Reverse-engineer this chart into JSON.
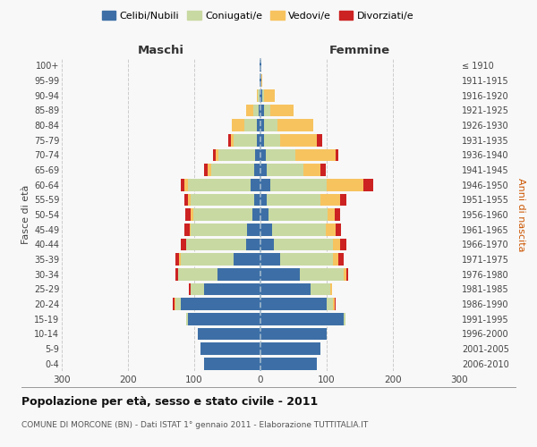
{
  "age_groups": [
    "0-4",
    "5-9",
    "10-14",
    "15-19",
    "20-24",
    "25-29",
    "30-34",
    "35-39",
    "40-44",
    "45-49",
    "50-54",
    "55-59",
    "60-64",
    "65-69",
    "70-74",
    "75-79",
    "80-84",
    "85-89",
    "90-94",
    "95-99",
    "100+"
  ],
  "birth_years": [
    "2006-2010",
    "2001-2005",
    "1996-2000",
    "1991-1995",
    "1986-1990",
    "1981-1985",
    "1976-1980",
    "1971-1975",
    "1966-1970",
    "1961-1965",
    "1956-1960",
    "1951-1955",
    "1946-1950",
    "1941-1945",
    "1936-1940",
    "1931-1935",
    "1926-1930",
    "1921-1925",
    "1916-1920",
    "1911-1915",
    "≤ 1910"
  ],
  "maschi_celibe": [
    85,
    90,
    95,
    110,
    120,
    85,
    65,
    40,
    22,
    20,
    12,
    10,
    15,
    10,
    8,
    5,
    5,
    3,
    2,
    1,
    1
  ],
  "maschi_coniugato": [
    0,
    0,
    0,
    2,
    8,
    20,
    60,
    80,
    90,
    85,
    90,
    95,
    95,
    65,
    55,
    35,
    20,
    8,
    2,
    0,
    0
  ],
  "maschi_vedovo": [
    0,
    0,
    0,
    0,
    2,
    0,
    0,
    3,
    0,
    2,
    3,
    5,
    5,
    5,
    5,
    5,
    18,
    10,
    2,
    0,
    0
  ],
  "maschi_divorziato": [
    0,
    0,
    0,
    0,
    2,
    3,
    3,
    5,
    8,
    8,
    8,
    5,
    5,
    5,
    3,
    3,
    0,
    0,
    0,
    0,
    0
  ],
  "femmine_celibe": [
    85,
    90,
    100,
    125,
    100,
    75,
    60,
    30,
    20,
    18,
    12,
    10,
    15,
    10,
    8,
    5,
    5,
    5,
    3,
    1,
    1
  ],
  "femmine_coniugata": [
    0,
    0,
    0,
    3,
    10,
    30,
    65,
    80,
    90,
    80,
    90,
    80,
    85,
    55,
    45,
    25,
    20,
    10,
    3,
    0,
    0
  ],
  "femmine_vedova": [
    0,
    0,
    0,
    0,
    2,
    3,
    5,
    8,
    10,
    15,
    10,
    30,
    55,
    25,
    60,
    55,
    55,
    35,
    15,
    2,
    0
  ],
  "femmine_divorziata": [
    0,
    0,
    0,
    0,
    2,
    0,
    3,
    8,
    10,
    8,
    8,
    10,
    15,
    8,
    5,
    8,
    0,
    0,
    0,
    0,
    0
  ],
  "color_celibe": "#3d6fa6",
  "color_coniugato": "#c8d9a2",
  "color_vedovo": "#f7c35f",
  "color_divorziato": "#cc2222",
  "title": "Popolazione per età, sesso e stato civile - 2011",
  "subtitle": "COMUNE DI MORCONE (BN) - Dati ISTAT 1° gennaio 2011 - Elaborazione TUTTITALIA.IT",
  "label_maschi": "Maschi",
  "label_femmine": "Femmine",
  "ylabel_left": "Fasce di età",
  "ylabel_right": "Anni di nascita",
  "legend_labels": [
    "Celibi/Nubili",
    "Coniugati/e",
    "Vedovi/e",
    "Divorziati/e"
  ],
  "xlim": 300,
  "background_color": "#f8f8f8",
  "grid_color": "#cccccc"
}
